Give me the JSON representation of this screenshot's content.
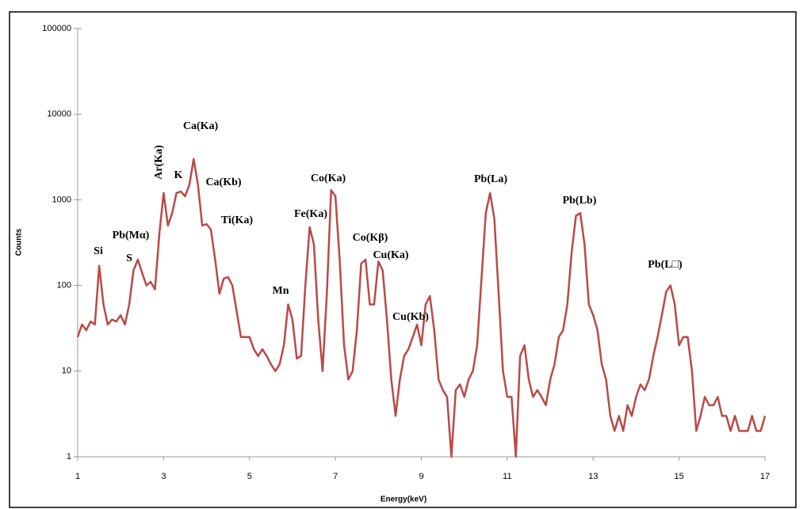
{
  "chart_data": {
    "type": "line",
    "x_label": "Energy(keV)",
    "y_label": "Counts",
    "x": [
      1.0,
      1.1,
      1.2,
      1.3,
      1.4,
      1.5,
      1.6,
      1.7,
      1.8,
      1.9,
      2.0,
      2.1,
      2.2,
      2.3,
      2.4,
      2.5,
      2.6,
      2.7,
      2.8,
      2.9,
      3.0,
      3.1,
      3.2,
      3.3,
      3.4,
      3.5,
      3.6,
      3.7,
      3.8,
      3.9,
      4.0,
      4.1,
      4.2,
      4.3,
      4.4,
      4.5,
      4.6,
      4.7,
      4.8,
      4.9,
      5.0,
      5.1,
      5.2,
      5.3,
      5.4,
      5.5,
      5.6,
      5.7,
      5.8,
      5.9,
      6.0,
      6.1,
      6.2,
      6.3,
      6.4,
      6.5,
      6.6,
      6.7,
      6.8,
      6.9,
      7.0,
      7.1,
      7.2,
      7.3,
      7.4,
      7.5,
      7.6,
      7.7,
      7.8,
      7.9,
      8.0,
      8.1,
      8.2,
      8.3,
      8.4,
      8.5,
      8.6,
      8.7,
      8.8,
      8.9,
      9.0,
      9.1,
      9.2,
      9.3,
      9.4,
      9.5,
      9.6,
      9.7,
      9.8,
      9.9,
      10.0,
      10.1,
      10.2,
      10.3,
      10.4,
      10.5,
      10.6,
      10.7,
      10.8,
      10.9,
      11.0,
      11.1,
      11.2,
      11.3,
      11.4,
      11.5,
      11.6,
      11.7,
      11.8,
      11.9,
      12.0,
      12.1,
      12.2,
      12.3,
      12.4,
      12.5,
      12.6,
      12.7,
      12.8,
      12.9,
      13.0,
      13.1,
      13.2,
      13.3,
      13.4,
      13.5,
      13.6,
      13.7,
      13.8,
      13.9,
      14.0,
      14.1,
      14.2,
      14.3,
      14.4,
      14.5,
      14.6,
      14.7,
      14.8,
      14.9,
      15.0,
      15.1,
      15.2,
      15.3,
      15.4,
      15.5,
      15.6,
      15.7,
      15.8,
      15.9,
      16.0,
      16.1,
      16.2,
      16.3,
      16.4,
      16.5,
      16.6,
      16.7,
      16.8,
      16.9,
      17.0
    ],
    "values": [
      25,
      35,
      30,
      38,
      35,
      170,
      60,
      35,
      40,
      38,
      45,
      35,
      60,
      150,
      200,
      140,
      100,
      110,
      90,
      400,
      1200,
      500,
      700,
      1200,
      1250,
      1100,
      1500,
      3000,
      1500,
      500,
      520,
      450,
      200,
      80,
      120,
      125,
      100,
      50,
      25,
      25,
      25,
      18,
      15,
      18,
      15,
      12,
      10,
      12,
      20,
      60,
      40,
      14,
      15,
      100,
      480,
      300,
      40,
      10,
      80,
      1300,
      1100,
      200,
      20,
      8,
      10,
      30,
      180,
      200,
      60,
      60,
      190,
      150,
      40,
      8,
      3,
      8,
      15,
      18,
      25,
      35,
      20,
      60,
      75,
      30,
      8,
      6,
      5,
      1,
      6,
      7,
      5,
      8,
      10,
      20,
      120,
      700,
      1200,
      600,
      80,
      10,
      5,
      5,
      1,
      15,
      20,
      8,
      5,
      6,
      5,
      4,
      8,
      12,
      25,
      30,
      60,
      250,
      650,
      700,
      300,
      60,
      45,
      30,
      12,
      8,
      3,
      2,
      3,
      2,
      4,
      3,
      5,
      7,
      6,
      8,
      15,
      25,
      45,
      85,
      100,
      60,
      20,
      25,
      25,
      10,
      2,
      3,
      5,
      4,
      4,
      5,
      3,
      3,
      2,
      3,
      2,
      2,
      2,
      3,
      2,
      2,
      3
    ],
    "color": "#b94a48",
    "xlim": [
      1,
      17
    ],
    "xticks": [
      1,
      3,
      5,
      7,
      9,
      11,
      13,
      15,
      17
    ],
    "ylim": [
      1,
      100000
    ],
    "yticks": [
      1,
      10,
      100,
      1000,
      10000,
      100000
    ],
    "y_scale": "log",
    "annotations": [
      "Si",
      "Pb(Mα)",
      "S",
      "Ar(Ka)",
      "K",
      "Ca(Ka)",
      "Ca(Kb)",
      "Ti(Ka)",
      "Mn",
      "Fe(Ka)",
      "Co(Ka)",
      "Co(Kβ)",
      "Cu(Ka)",
      "Cu(Kb)",
      "Pb(La)",
      "Pb(Lb)",
      "Pb(L□)"
    ]
  }
}
